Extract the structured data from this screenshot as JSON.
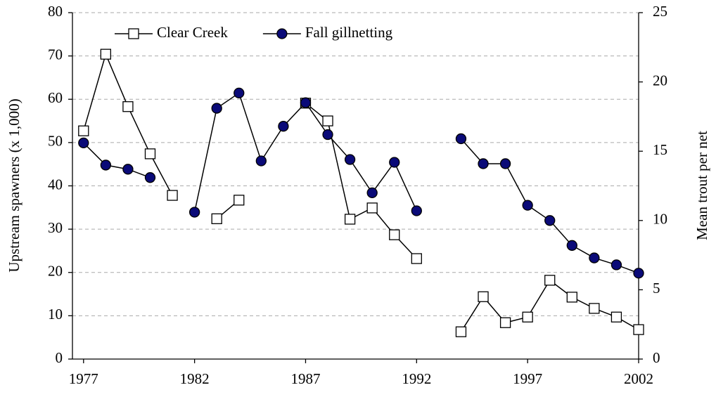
{
  "chart_data": {
    "type": "line",
    "y_label": "Upstream spawners (x 1,000)",
    "y2_label": "Mean trout per net",
    "x": [
      1977,
      1978,
      1979,
      1980,
      1981,
      1982,
      1983,
      1984,
      1985,
      1986,
      1987,
      1988,
      1989,
      1990,
      1991,
      1992,
      1993,
      1994,
      1995,
      1996,
      1997,
      1998,
      1999,
      2000,
      2001,
      2002
    ],
    "xlim": [
      1976.5,
      2002
    ],
    "xticks": [
      1977,
      1982,
      1987,
      1992,
      1997,
      2002
    ],
    "ylim": [
      0,
      80
    ],
    "yticks": [
      0,
      10,
      20,
      30,
      40,
      50,
      60,
      70,
      80
    ],
    "y2lim": [
      0,
      25
    ],
    "y2ticks": [
      0,
      5,
      10,
      15,
      20,
      25
    ],
    "grid": true,
    "legend": "upper left",
    "series": [
      {
        "name": "Clear Creek",
        "color": "#ffffff",
        "marker": "square",
        "values": [
          52.7,
          70.4,
          58.3,
          47.4,
          37.8,
          null,
          32.4,
          36.7,
          null,
          null,
          59.1,
          55.0,
          32.3,
          34.9,
          28.7,
          23.2,
          null,
          6.3,
          14.4,
          8.4,
          9.7,
          18.2,
          14.3,
          11.7,
          9.7,
          6.8
        ]
      },
      {
        "name": "Fall gillnetting",
        "color": "#0a0a78",
        "marker": "circle",
        "axis": "y2",
        "values": [
          15.6,
          14.0,
          13.7,
          13.1,
          null,
          10.6,
          18.1,
          19.2,
          14.3,
          16.8,
          18.5,
          16.2,
          14.4,
          12.0,
          14.2,
          10.7,
          null,
          15.9,
          14.1,
          14.1,
          11.1,
          10.0,
          8.2,
          7.3,
          6.8,
          6.2
        ]
      }
    ]
  }
}
